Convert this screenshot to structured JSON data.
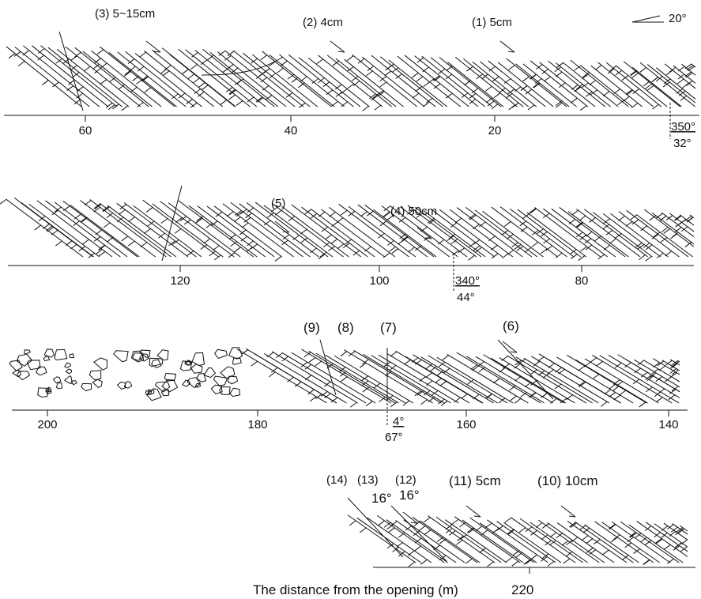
{
  "scale_mark": "20°",
  "panels": [
    {
      "labels": [
        "(3) 5~15cm",
        "(2) 4cm",
        "(1) 5cm"
      ],
      "ticks": [
        "60",
        "40",
        "20"
      ],
      "attitude": {
        "strike": "350°",
        "dip": "32°"
      }
    },
    {
      "labels": [
        "(5)",
        "(4) 50cm"
      ],
      "ticks": [
        "120",
        "100",
        "80"
      ],
      "attitude": {
        "strike": "340°",
        "dip": "44°"
      }
    },
    {
      "labels": [
        "(9)",
        "(8)",
        "(7)",
        "(6)"
      ],
      "ticks": [
        "200",
        "180",
        "160",
        "140"
      ],
      "attitude": {
        "strike": "4°",
        "dip": "67°"
      }
    },
    {
      "labels": [
        "(14)",
        "(13)",
        "(12)",
        "(11) 5cm",
        "(10) 10cm",
        "16°",
        "16°"
      ]
    }
  ],
  "axis_title": "The distance from the opening (m)",
  "last_tick": "220"
}
